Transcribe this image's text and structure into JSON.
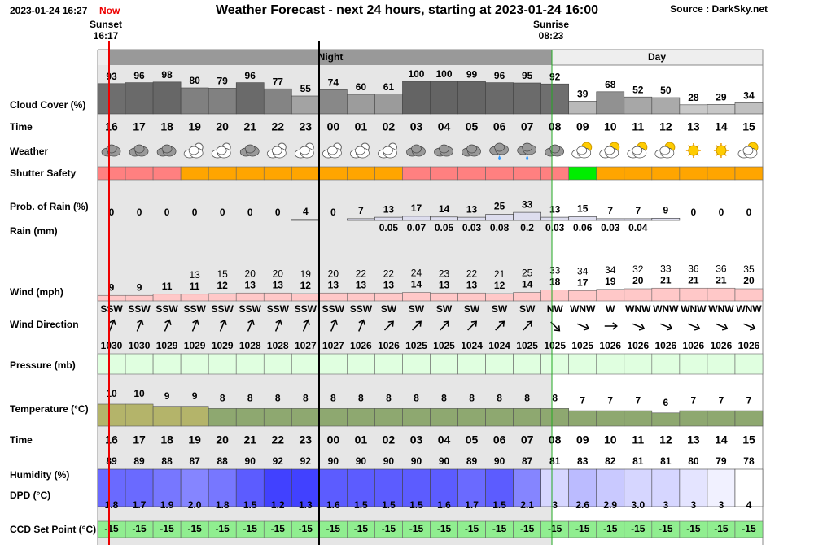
{
  "header": {
    "now_time": "2023-01-24 16:27",
    "now": "Now",
    "title": "Weather Forecast - next 24 hours, starting at 2023-01-24 16:00",
    "source": "Source : DarkSky.net",
    "sunset": "Sunset",
    "sunset_time": "16:17",
    "sunrise": "Sunrise",
    "sunrise_time": "08:23",
    "night": "Night",
    "day": "Day"
  },
  "labels": {
    "cloud_cover": "Cloud Cover (%)",
    "time": "Time",
    "weather": "Weather",
    "shutter_safety": "Shutter Safety",
    "prob_rain": "Prob. of Rain (%)",
    "rain": "Rain (mm)",
    "wind": "Wind (mph)",
    "wind_direction": "Wind Direction",
    "pressure": "Pressure (mb)",
    "temperature": "Temperature (°C)",
    "time2": "Time",
    "humidity": "Humidity (%)",
    "dpd": "DPD (°C)",
    "ccd": "CCD Set Point (°C)"
  },
  "hours": [
    "16",
    "17",
    "18",
    "19",
    "20",
    "21",
    "22",
    "23",
    "00",
    "01",
    "02",
    "03",
    "04",
    "05",
    "06",
    "07",
    "08",
    "09",
    "10",
    "11",
    "12",
    "13",
    "14",
    "15"
  ],
  "cloud_cover": [
    93,
    96,
    98,
    80,
    79,
    96,
    77,
    55,
    74,
    60,
    61,
    100,
    100,
    99,
    96,
    95,
    92,
    39,
    68,
    52,
    50,
    28,
    29,
    34
  ],
  "weather": [
    "cloudy",
    "cloudy",
    "cloudy",
    "partly-cloudy-night",
    "partly-cloudy-night",
    "cloudy",
    "partly-cloudy-night",
    "partly-cloudy-night",
    "partly-cloudy-night",
    "partly-cloudy-night",
    "partly-cloudy-night",
    "cloudy",
    "cloudy",
    "cloudy",
    "rain",
    "rain",
    "cloudy",
    "partly-cloudy-day",
    "partly-cloudy-day",
    "partly-cloudy-day",
    "partly-cloudy-day",
    "clear-day",
    "clear-day",
    "partly-cloudy-day"
  ],
  "shutter_safety": [
    "#ff8080",
    "#ff8080",
    "#ff8080",
    "#ffa500",
    "#ffa500",
    "#ffa500",
    "#ffa500",
    "#ffa500",
    "#ffa500",
    "#ffa500",
    "#ffa500",
    "#ff8080",
    "#ff8080",
    "#ff8080",
    "#ff8080",
    "#ff8080",
    "#ff8080",
    "#00ee00",
    "#ffa500",
    "#ffa500",
    "#ffa500",
    "#ffa500",
    "#ffa500",
    "#ffa500"
  ],
  "prob_rain": [
    0,
    0,
    0,
    0,
    0,
    0,
    0,
    4,
    0,
    7,
    13,
    17,
    14,
    13,
    25,
    33,
    13,
    15,
    7,
    7,
    9,
    0,
    0,
    0
  ],
  "rain_mm": [
    null,
    null,
    null,
    null,
    null,
    null,
    null,
    null,
    null,
    null,
    0.05,
    0.07,
    0.05,
    0.03,
    0.08,
    0.2,
    0.03,
    0.06,
    0.03,
    0.04,
    null,
    null,
    null,
    null
  ],
  "wind_gust": [
    null,
    null,
    null,
    13,
    15,
    20,
    20,
    19,
    20,
    22,
    22,
    24,
    23,
    22,
    21,
    25,
    33,
    34,
    34,
    32,
    33,
    36,
    36,
    35
  ],
  "wind_speed": [
    9,
    9,
    11,
    11,
    12,
    13,
    13,
    12,
    13,
    13,
    13,
    14,
    13,
    13,
    12,
    14,
    18,
    17,
    19,
    20,
    21,
    21,
    21,
    20
  ],
  "wind_direction": [
    "SSW",
    "SSW",
    "SSW",
    "SSW",
    "SSW",
    "SSW",
    "SSW",
    "SSW",
    "SSW",
    "SSW",
    "SW",
    "SW",
    "SW",
    "SW",
    "SW",
    "SW",
    "NW",
    "WNW",
    "W",
    "WNW",
    "WNW",
    "WNW",
    "WNW",
    "WNW"
  ],
  "pressure": [
    1030,
    1030,
    1029,
    1029,
    1029,
    1028,
    1028,
    1027,
    1027,
    1026,
    1026,
    1025,
    1025,
    1024,
    1024,
    1025,
    1025,
    1025,
    1026,
    1026,
    1026,
    1026,
    1026,
    1026
  ],
  "temperature": [
    10,
    10,
    9,
    9,
    8,
    8,
    8,
    8,
    8,
    8,
    8,
    8,
    8,
    8,
    8,
    8,
    8,
    7,
    7,
    7,
    6,
    7,
    7,
    7
  ],
  "humidity": [
    89,
    89,
    88,
    87,
    88,
    90,
    92,
    92,
    90,
    90,
    90,
    90,
    90,
    89,
    90,
    87,
    81,
    83,
    82,
    81,
    81,
    80,
    79,
    78
  ],
  "dpd": [
    "1.8",
    "1.7",
    "1.9",
    "2.0",
    "1.8",
    "1.5",
    "1.2",
    "1.3",
    "1.6",
    "1.5",
    "1.5",
    "1.5",
    "1.6",
    "1.7",
    "1.5",
    "2.1",
    "3",
    "2.6",
    "2.9",
    "3.0",
    "3",
    "3",
    "3",
    "4"
  ],
  "ccd_set_point": [
    -15,
    -15,
    -15,
    -15,
    -15,
    -15,
    -15,
    -15,
    -15,
    -15,
    -15,
    -15,
    -15,
    -15,
    -15,
    -15,
    -15,
    -15,
    -15,
    -15,
    -15,
    -15,
    -15,
    -15
  ]
}
